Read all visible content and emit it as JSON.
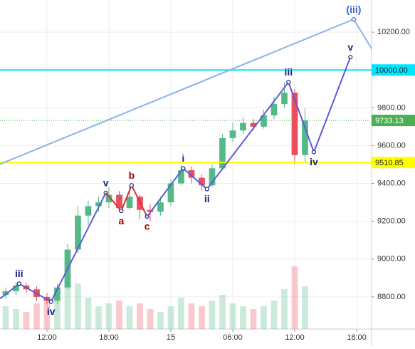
{
  "chart_data": {
    "type": "candlestick",
    "xlim": [
      7.45,
      43.45
    ],
    "ylim": [
      8630,
      10370
    ],
    "xticks": [
      {
        "value": 12,
        "label": "12:00"
      },
      {
        "value": 18,
        "label": "18:00"
      },
      {
        "value": 24,
        "label": "15"
      },
      {
        "value": 30,
        "label": "06:00"
      },
      {
        "value": 36,
        "label": "12:00"
      },
      {
        "value": 42,
        "label": "18:00"
      }
    ],
    "yticks": [
      {
        "value": 8800,
        "label": "8800.00"
      },
      {
        "value": 9000,
        "label": "9000.00"
      },
      {
        "value": 9200,
        "label": "9200.00"
      },
      {
        "value": 9400,
        "label": "9400.00"
      },
      {
        "value": 9600,
        "label": "9600.00"
      },
      {
        "value": 9800,
        "label": "9800.00"
      },
      {
        "value": 10000,
        "label": "10000.00"
      },
      {
        "value": 10200,
        "label": "10200.00"
      }
    ],
    "grid": true,
    "up_color": "#53b987",
    "down_color": "#eb4d5c",
    "candles": {
      "x": [
        8,
        9,
        10,
        11,
        12,
        13,
        14,
        15,
        16,
        17,
        18,
        19,
        20,
        21,
        22,
        23,
        24,
        25,
        26,
        27,
        28,
        29,
        30,
        31,
        32,
        33,
        34,
        35,
        36,
        37
      ],
      "open": [
        8810,
        8830,
        8860,
        8840,
        8800,
        8780,
        8850,
        9050,
        9230,
        9280,
        9300,
        9340,
        9270,
        9330,
        9260,
        9250,
        9300,
        9400,
        9470,
        9430,
        9390,
        9480,
        9640,
        9680,
        9720,
        9700,
        9760,
        9820,
        9880,
        9550
      ],
      "high": [
        8850,
        8880,
        8875,
        8855,
        8820,
        8870,
        9080,
        9280,
        9310,
        9330,
        9380,
        9360,
        9390,
        9340,
        9290,
        9330,
        9420,
        9500,
        9490,
        9450,
        9500,
        9660,
        9720,
        9750,
        9740,
        9790,
        9860,
        9935,
        9900,
        9800
      ],
      "low": [
        8790,
        8810,
        8820,
        8780,
        8760,
        8760,
        8840,
        9030,
        9180,
        9250,
        9270,
        9250,
        9260,
        9210,
        9200,
        9230,
        9280,
        9390,
        9400,
        9360,
        9380,
        9470,
        9620,
        9660,
        9680,
        9690,
        9740,
        9800,
        9500,
        9510
      ],
      "close": [
        8830,
        8860,
        8840,
        8800,
        8780,
        8850,
        9050,
        9230,
        9280,
        9300,
        9340,
        9270,
        9330,
        9260,
        9250,
        9300,
        9400,
        9470,
        9430,
        9390,
        9480,
        9640,
        9680,
        9720,
        9700,
        9760,
        9820,
        9880,
        9550,
        9733
      ],
      "volume": [
        40,
        35,
        30,
        45,
        50,
        60,
        90,
        80,
        55,
        40,
        45,
        50,
        40,
        45,
        35,
        30,
        40,
        55,
        45,
        40,
        50,
        60,
        45,
        40,
        35,
        40,
        50,
        70,
        110,
        75
      ]
    },
    "hlines": [
      {
        "value": 10000,
        "label": "10000.00",
        "color": "#00e5ff"
      },
      {
        "value": 9510.85,
        "label": "9510.85",
        "color": "#ffff00"
      },
      {
        "value": 9733.13,
        "label": "9733.13",
        "color": "#4caf50"
      }
    ],
    "series": [
      {
        "color": "#8ab4e8",
        "label_color": "#3a5fcd",
        "x": [
          7.45,
          41.72,
          43.45
        ],
        "y": [
          9502,
          10268,
          10113
        ],
        "labels": [
          null,
          "(iii)",
          null
        ]
      },
      {
        "color": "#5b5bdc",
        "label_color": "#1a237e",
        "x": [
          7.45,
          9.3,
          12.4,
          17.7
        ],
        "y": [
          8790,
          8870,
          8775,
          9350
        ],
        "labels": [
          null,
          "iii",
          "iv",
          "v"
        ]
      },
      {
        "color": "#d9303a",
        "label_color": "#a00000",
        "x": [
          17.7,
          19.2,
          20.2,
          21.7
        ],
        "y": [
          9350,
          9255,
          9390,
          9225
        ],
        "labels": [
          null,
          "a",
          "b",
          "c"
        ]
      },
      {
        "color": "#5b5bdc",
        "label_color": "#1a237e",
        "x": [
          21.7,
          25.2,
          27.5,
          35.4,
          37.86,
          41.4
        ],
        "y": [
          9225,
          9480,
          9370,
          9935,
          9566,
          10068
        ],
        "labels": [
          null,
          "i",
          "ii",
          "iii",
          "iv",
          "v"
        ]
      }
    ]
  }
}
